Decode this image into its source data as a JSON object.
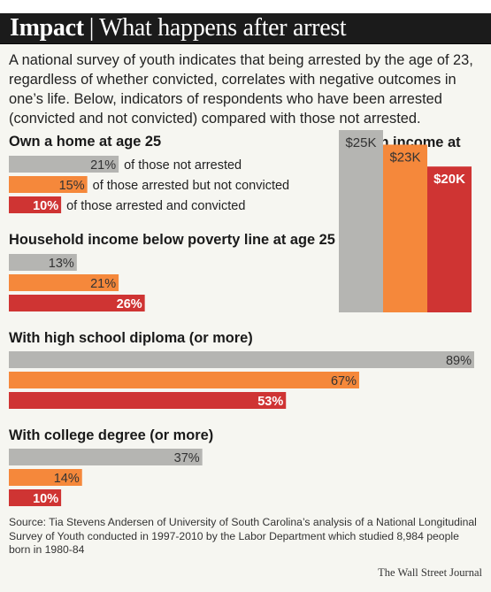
{
  "header": {
    "title_bold": "Impact",
    "separator": "|",
    "title_rest": "What happens after arrest"
  },
  "intro": "A national survey of youth indicates that being arrested by the age of 23, regardless of whether convicted, correlates with negative outcomes in one’s life. Below, indicators of respondents who have been arrested (convicted and not convicted) compared with those not arrested.",
  "colors": {
    "not_arrested": "#b5b5b2",
    "arrested_not_convicted": "#f5883b",
    "arrested_convicted": "#cf3433"
  },
  "chart_data": [
    {
      "type": "bar",
      "orientation": "horizontal",
      "title": "Own a home at age 25",
      "unit": "%",
      "series": [
        {
          "name": "of those not arrested",
          "value": 21,
          "label": "21%"
        },
        {
          "name": "of those arrested but not convicted",
          "value": 15,
          "label": "15%"
        },
        {
          "name": "of those arrested and convicted",
          "value": 10,
          "label": "10%"
        }
      ]
    },
    {
      "type": "bar",
      "orientation": "horizontal",
      "title": "Household income below poverty line at age 25",
      "unit": "%",
      "series": [
        {
          "name": "",
          "value": 13,
          "label": "13%"
        },
        {
          "name": "",
          "value": 21,
          "label": "21%"
        },
        {
          "name": "",
          "value": 26,
          "label": "26%"
        }
      ]
    },
    {
      "type": "bar",
      "orientation": "horizontal",
      "title": "With high school diploma (or more)",
      "unit": "%",
      "series": [
        {
          "name": "",
          "value": 89,
          "label": "89%"
        },
        {
          "name": "",
          "value": 67,
          "label": "67%"
        },
        {
          "name": "",
          "value": 53,
          "label": "53%"
        }
      ]
    },
    {
      "type": "bar",
      "orientation": "horizontal",
      "title": "With college degree (or more)",
      "unit": "%",
      "series": [
        {
          "name": "",
          "value": 37,
          "label": "37%"
        },
        {
          "name": "",
          "value": 14,
          "label": "14%"
        },
        {
          "name": "",
          "value": 10,
          "label": "10%"
        }
      ]
    },
    {
      "type": "bar",
      "orientation": "vertical",
      "title": "Median income at age 25",
      "unit": "$K",
      "series": [
        {
          "name": "",
          "value": 25,
          "label": "$25K"
        },
        {
          "name": "",
          "value": 23,
          "label": "$23K"
        },
        {
          "name": "",
          "value": 20,
          "label": "$20K"
        }
      ]
    }
  ],
  "source": "Source: Tia Stevens Andersen of University of South Carolina’s analysis of a National Longitudinal Survey of Youth conducted in 1997-2010 by the Labor Department which studied 8,984 people born in 1980-84",
  "credit": "The Wall Street Journal"
}
